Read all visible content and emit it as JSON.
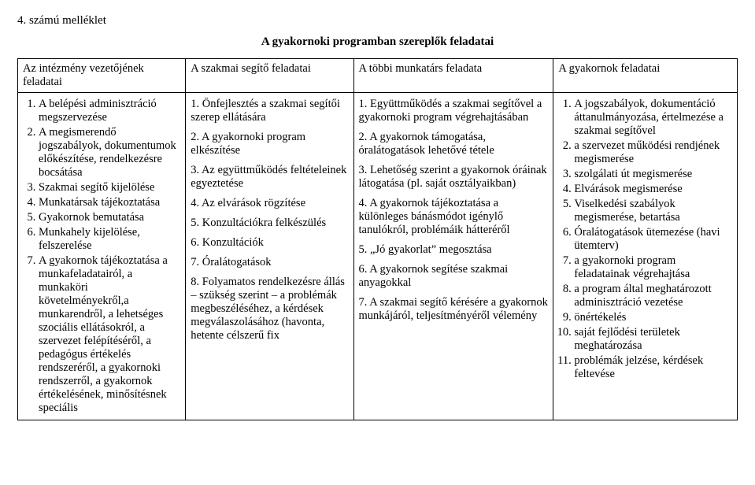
{
  "attachment_label": "4. számú melléklet",
  "main_title": "A gyakornoki programban szereplők feladatai",
  "headers": {
    "c1": "Az intézmény vezetőjének feladatai",
    "c2": "A szakmai segítő feladatai",
    "c3": "A többi munkatárs feladata",
    "c4": "A gyakornok feladatai"
  },
  "col1": {
    "i1": "A belépési adminisztráció megszervezése",
    "i2": "A megismerendő jogszabályok, dokumentumok előkészítése, rendelkezésre bocsátása",
    "i3": "Szakmai segítő kijelölése",
    "i4": "Munkatársak tájékoztatása",
    "i5": "Gyakornok bemutatása",
    "i6": "Munkahely kijelölése, felszerelése",
    "i7": "A gyakornok tájékoztatása a munkafeladatairól, a munkaköri követelményekről,a munkarendről, a lehetséges szociális ellátásokról, a szervezet felépítéséről, a pedagógus értékelés rendszeréről, a gyakornoki rendszerről, a gyakornok értékelésének, minősítésnek speciális"
  },
  "col2": {
    "i1": "1. Önfejlesztés a szakmai segítői szerep ellátására",
    "i2": "2. A gyakornoki program elkészítése",
    "i3": "3. Az együttműködés feltételeinek egyeztetése",
    "i4": "4. Az elvárások rögzítése",
    "i5": "5. Konzultációkra felkészülés",
    "i6": "6. Konzultációk",
    "i7": "7. Óralátogatások",
    "i8": "8. Folyamatos rendelkezésre állás – szükség szerint – a problémák megbeszéléséhez, a kérdések megválaszolásához (havonta, hetente célszerű fix"
  },
  "col3": {
    "i1": "1. Együttműködés a szakmai segítővel a gyakornoki program végrehajtásában",
    "i2": "2. A gyakornok támogatása, óralátogatások lehetővé tétele",
    "i3": "3. Lehetőség szerint a gyakornok óráinak látogatása (pl. saját osztályaikban)",
    "i4": "4. A gyakornok tájékoztatása a különleges bánásmódot igénylő tanulókról, problémáik hátteréről",
    "i5": "5. „Jó gyakorlat” megosztása",
    "i6": "6. A gyakornok segítése szakmai anyagokkal",
    "i7": "7. A szakmai segítő kérésére a gyakornok munkájáról, teljesítményéről vélemény"
  },
  "col4": {
    "i1": "A jogszabályok, dokumentáció áttanulmányozása, értelmezése a szakmai segítővel",
    "i2": "a szervezet működési rendjének megismerése",
    "i3": "szolgálati út megismerése",
    "i4": "Elvárások megismerése",
    "i5": "Viselkedési szabályok megismerése, betartása",
    "i6": "Óralátogatások ütemezése (havi ütemterv)",
    "i7": "a gyakornoki program feladatainak végrehajtása",
    "i8": "a program által meghatározott adminisztráció vezetése",
    "i9": "önértékelés",
    "i10": "saját fejlődési területek meghatározása",
    "i11": "problémák jelzése, kérdések feltevése"
  }
}
